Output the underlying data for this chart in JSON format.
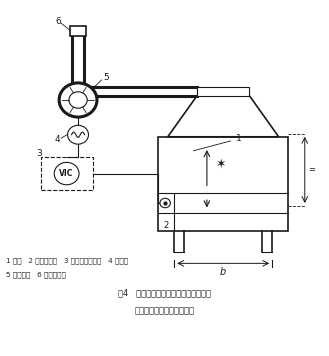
{
  "title": "图4   变风量排风柜结合采用变频风机时",
  "title2": "窗口风速的自动控制原理图",
  "legend_line1": "1 拉窗   2 风速传感器   3 风速显示控制器   4 变频器",
  "legend_line2": "5 变频风机   6 直冲式风帽",
  "bg_color": "#ffffff",
  "line_color": "#1a1a1a",
  "label_color": "#222222",
  "fig_width": 3.29,
  "fig_height": 3.56,
  "dpi": 100
}
